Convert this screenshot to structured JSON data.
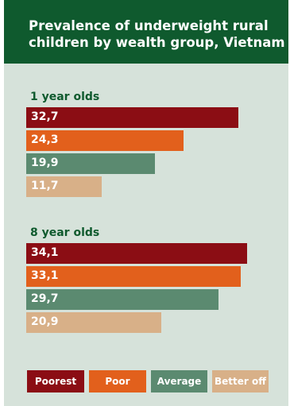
{
  "header": {
    "title_line1": "Prevalence of underweight rural",
    "title_line2": "children by wealth group, Vietnam"
  },
  "colors": {
    "poorest": "#8b0d14",
    "poor": "#e2601c",
    "average": "#5b8a70",
    "better_off": "#d8b088",
    "header_bg": "#0f5a2e",
    "panel_bg": "#d6e2da"
  },
  "chart_data": {
    "type": "bar",
    "orientation": "horizontal",
    "title": "Prevalence of underweight rural children by wealth group, Vietnam",
    "xlim": [
      0,
      38
    ],
    "legend": [
      "Poorest",
      "Poor",
      "Average",
      "Better off"
    ],
    "legend_position": "bottom",
    "groups": [
      {
        "label": "1 year olds",
        "bars": [
          {
            "series": "Poorest",
            "value": 32.7,
            "label": "32,7"
          },
          {
            "series": "Poor",
            "value": 24.3,
            "label": "24,3"
          },
          {
            "series": "Average",
            "value": 19.9,
            "label": "19,9"
          },
          {
            "series": "Better off",
            "value": 11.7,
            "label": "11,7"
          }
        ]
      },
      {
        "label": "8 year olds",
        "bars": [
          {
            "series": "Poorest",
            "value": 34.1,
            "label": "34,1"
          },
          {
            "series": "Poor",
            "value": 33.1,
            "label": "33,1"
          },
          {
            "series": "Average",
            "value": 29.7,
            "label": "29,7"
          },
          {
            "series": "Better off",
            "value": 20.9,
            "label": "20,9"
          }
        ]
      }
    ]
  }
}
